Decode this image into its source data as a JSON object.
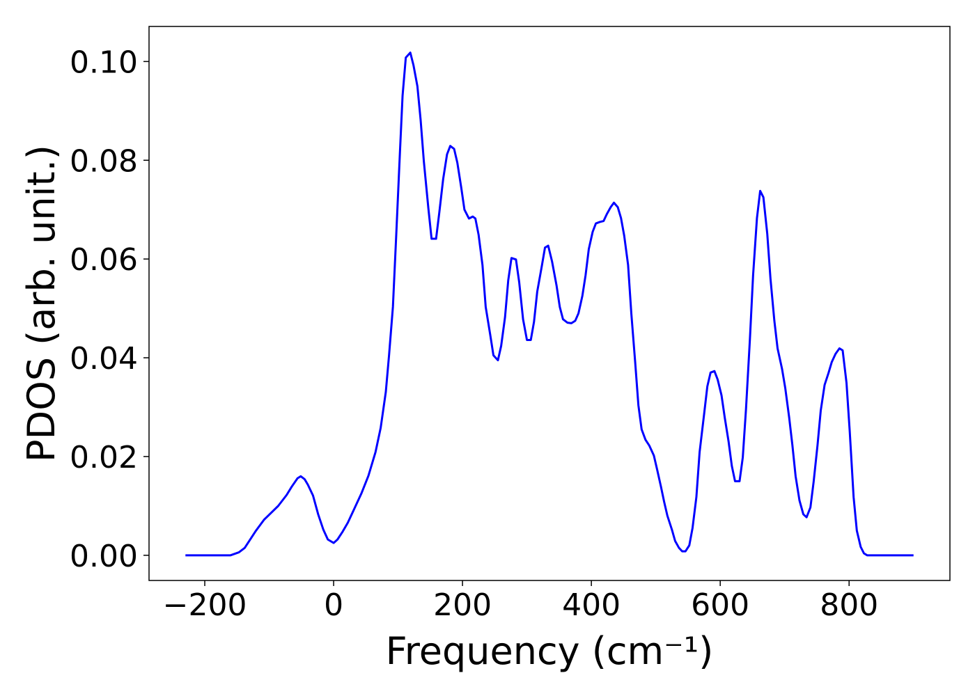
{
  "chart_data": {
    "type": "line",
    "xlabel": "Frequency (cm⁻¹)",
    "ylabel": "PDOS (arb. unit.)",
    "xlim": [
      -286.5,
      956.5
    ],
    "ylim": [
      -0.0051,
      0.1071
    ],
    "xticks": [
      {
        "value": -200,
        "label": "−200"
      },
      0,
      200,
      400,
      600,
      800
    ],
    "yticks": [
      {
        "value": 0,
        "label": "0.00"
      },
      {
        "value": 0.02,
        "label": "0.02"
      },
      {
        "value": 0.04,
        "label": "0.04"
      },
      {
        "value": 0.06,
        "label": "0.06"
      },
      {
        "value": 0.08,
        "label": "0.08"
      },
      {
        "value": 0.1,
        "label": "0.10"
      }
    ],
    "grid": false,
    "series": [
      {
        "color": "#0000ff",
        "x": [
          -230,
          -200,
          -160,
          -147,
          -138,
          -121,
          -108,
          -86,
          -73,
          -65,
          -56,
          -51,
          -45,
          -40,
          -32,
          -24,
          -16,
          -9,
          0,
          6,
          14,
          22,
          32,
          43,
          54,
          65,
          73,
          81,
          86,
          92,
          97,
          103,
          107,
          112,
          119,
          124,
          130,
          135,
          140,
          147,
          152,
          159,
          164,
          170,
          176,
          181,
          187,
          192,
          198,
          203,
          210,
          216,
          220,
          225,
          231,
          236,
          243,
          248,
          255,
          260,
          266,
          271,
          276,
          283,
          288,
          294,
          300,
          306,
          311,
          316,
          323,
          328,
          333,
          339,
          346,
          351,
          356,
          363,
          369,
          375,
          380,
          386,
          391,
          396,
          402,
          407,
          413,
          419,
          424,
          430,
          435,
          441,
          446,
          451,
          457,
          462,
          468,
          473,
          478,
          484,
          490,
          497,
          502,
          508,
          513,
          518,
          525,
          530,
          536,
          541,
          546,
          552,
          557,
          563,
          568,
          575,
          580,
          585,
          591,
          596,
          602,
          607,
          613,
          618,
          623,
          630,
          635,
          640,
          646,
          651,
          657,
          662,
          667,
          673,
          678,
          684,
          689,
          696,
          701,
          707,
          712,
          717,
          723,
          729,
          734,
          740,
          745,
          751,
          756,
          762,
          768,
          773,
          779,
          785,
          790,
          796,
          801,
          807,
          812,
          818,
          823,
          828,
          860,
          900
        ],
        "values": [
          0,
          0,
          0,
          0.0006,
          0.0015,
          0.0049,
          0.0072,
          0.01,
          0.0122,
          0.0139,
          0.0156,
          0.016,
          0.0154,
          0.0143,
          0.0121,
          0.0083,
          0.0052,
          0.0032,
          0.0025,
          0.0032,
          0.0048,
          0.0066,
          0.0094,
          0.0125,
          0.0161,
          0.0209,
          0.0258,
          0.0331,
          0.0405,
          0.0503,
          0.0644,
          0.0819,
          0.0931,
          0.1008,
          0.1018,
          0.0992,
          0.095,
          0.0882,
          0.0798,
          0.0703,
          0.0641,
          0.0641,
          0.0694,
          0.0762,
          0.0812,
          0.0829,
          0.0823,
          0.0795,
          0.0745,
          0.07,
          0.0682,
          0.0686,
          0.0682,
          0.0649,
          0.0588,
          0.0503,
          0.0447,
          0.0405,
          0.0395,
          0.0424,
          0.0482,
          0.0557,
          0.0602,
          0.0599,
          0.0553,
          0.0478,
          0.0436,
          0.0436,
          0.0473,
          0.0534,
          0.0585,
          0.0623,
          0.0627,
          0.0595,
          0.0546,
          0.0503,
          0.0478,
          0.0471,
          0.047,
          0.0475,
          0.049,
          0.0525,
          0.0567,
          0.062,
          0.0655,
          0.0672,
          0.0675,
          0.0677,
          0.0691,
          0.0705,
          0.0714,
          0.0705,
          0.0683,
          0.0647,
          0.0588,
          0.049,
          0.0391,
          0.0304,
          0.0255,
          0.0234,
          0.0222,
          0.0202,
          0.0174,
          0.0139,
          0.0108,
          0.008,
          0.0052,
          0.0029,
          0.0015,
          0.0008,
          0.0008,
          0.002,
          0.0055,
          0.0118,
          0.0209,
          0.0286,
          0.0342,
          0.037,
          0.0373,
          0.0356,
          0.0324,
          0.0279,
          0.023,
          0.0181,
          0.015,
          0.015,
          0.0198,
          0.0296,
          0.0436,
          0.0567,
          0.0683,
          0.0738,
          0.0725,
          0.0651,
          0.056,
          0.0475,
          0.0419,
          0.0377,
          0.0338,
          0.0279,
          0.0223,
          0.016,
          0.0111,
          0.0083,
          0.0077,
          0.0097,
          0.0149,
          0.0223,
          0.0293,
          0.0345,
          0.0369,
          0.0391,
          0.0408,
          0.0419,
          0.0415,
          0.0349,
          0.0251,
          0.0118,
          0.005,
          0.0017,
          0.0004,
          0,
          0,
          0
        ]
      }
    ]
  }
}
